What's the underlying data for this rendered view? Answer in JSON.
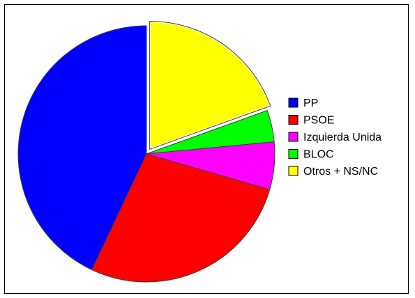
{
  "chart_data": {
    "type": "pie",
    "title": "",
    "slices": [
      {
        "label": "PP",
        "value": 43.0,
        "color": "#0000ff",
        "exploded": false
      },
      {
        "label": "PSOE",
        "value": 27.5,
        "color": "#ff0000",
        "exploded": false
      },
      {
        "label": "Izquierda Unida",
        "value": 6.0,
        "color": "#ff00ff",
        "exploded": false
      },
      {
        "label": "BLOC",
        "value": 4.0,
        "color": "#00ff00",
        "exploded": false
      },
      {
        "label": "Otros + NS/NC",
        "value": 19.5,
        "color": "#ffff00",
        "exploded": true
      }
    ],
    "legend_position": "right",
    "start": "top, clockwise from Otros + NS/NC"
  }
}
